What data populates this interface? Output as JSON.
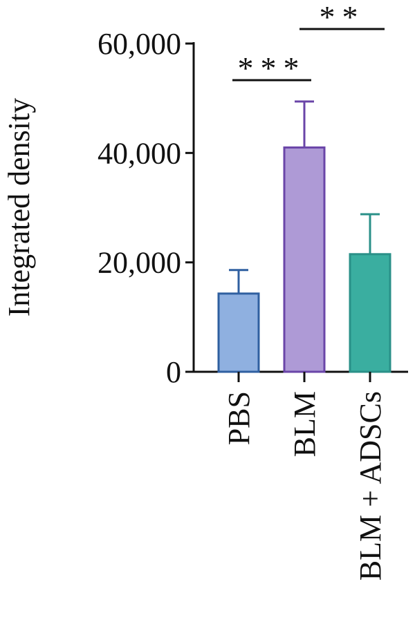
{
  "chart_data": {
    "type": "bar",
    "y_label": "Integrated density",
    "categories": [
      "PBS",
      "BLM",
      "BLM + ADSCs"
    ],
    "values": [
      14300,
      41000,
      21500
    ],
    "errors": [
      4300,
      8400,
      7300
    ],
    "colors": [
      "#8fb0e0",
      "#ae9ad6",
      "#3aaea0"
    ],
    "edge_colors": [
      "#2f5fa0",
      "#6a45a8",
      "#2a9088"
    ],
    "ylim": [
      0,
      60000
    ],
    "yticks": [
      0,
      {
        "value": 20000,
        "label": "20,000"
      },
      {
        "value": 40000,
        "label": "40,000"
      },
      {
        "value": 60000,
        "label": "60,000"
      }
    ],
    "annotations": [
      "***",
      "**"
    ]
  }
}
